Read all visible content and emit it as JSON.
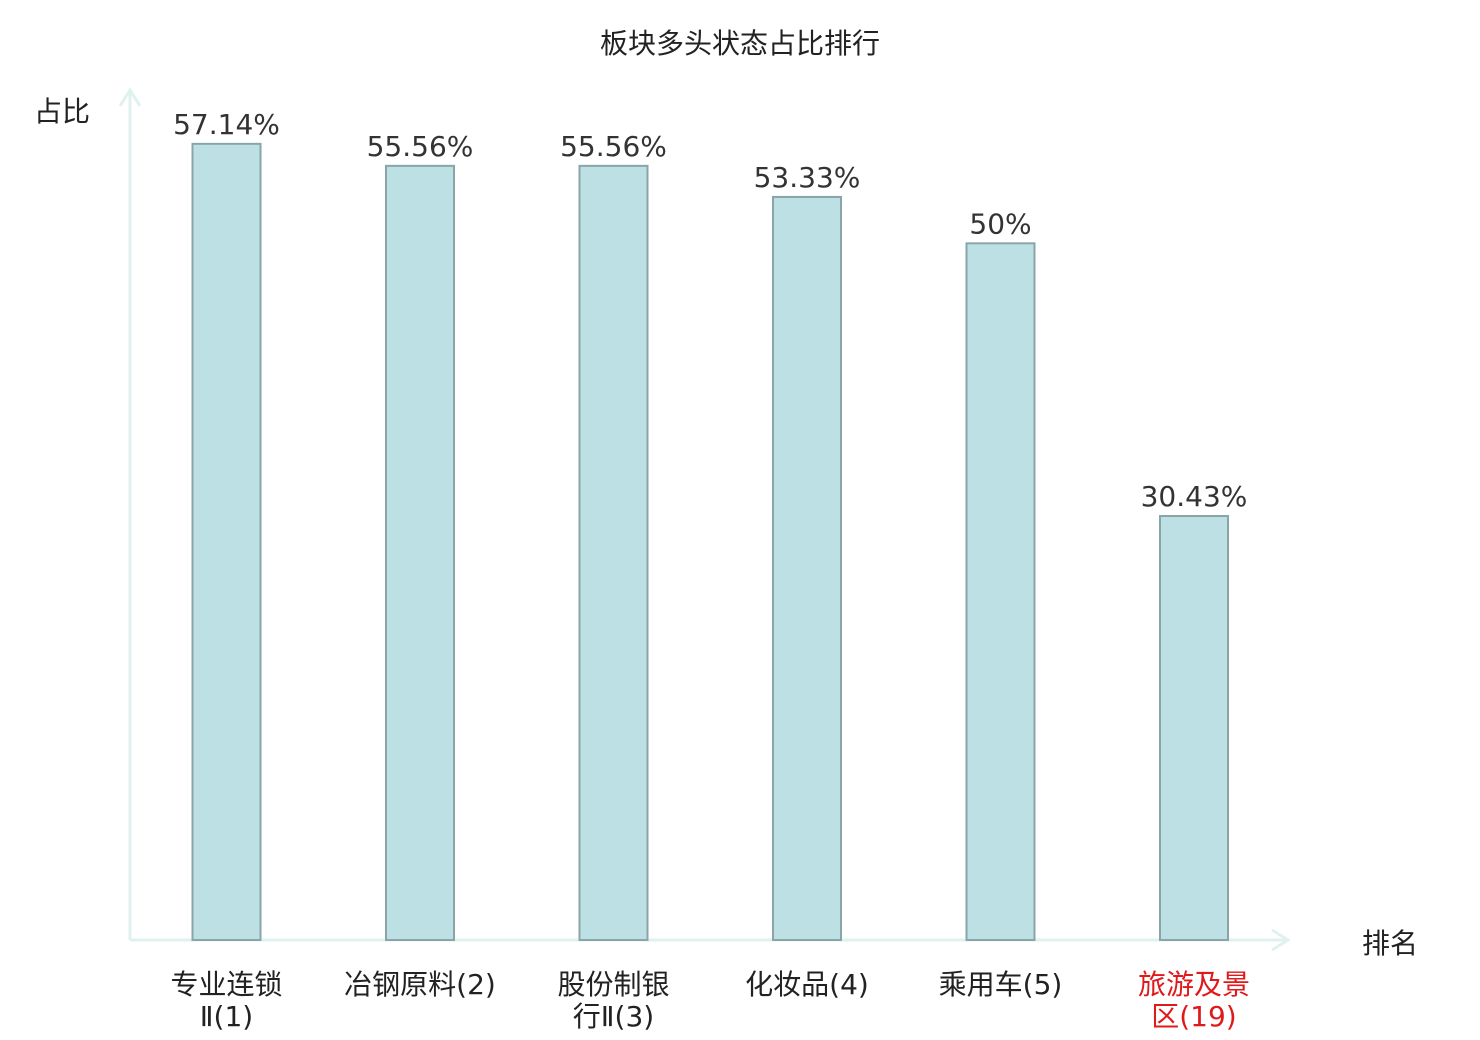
{
  "chart_data": {
    "type": "bar",
    "title": "板块多头状态占比排行",
    "ylabel": "占比",
    "xlabel": "排名",
    "categories": [
      [
        "专业连锁",
        "Ⅱ(1)"
      ],
      [
        "冶钢原料(2)"
      ],
      [
        "股份制银",
        "行Ⅱ(3)"
      ],
      [
        "化妆品(4)"
      ],
      [
        "乘用车(5)"
      ],
      [
        "旅游及景",
        "区(19)"
      ]
    ],
    "values": [
      57.14,
      55.56,
      55.56,
      53.33,
      50,
      30.43
    ],
    "value_labels": [
      "57.14%",
      "55.56%",
      "55.56%",
      "53.33%",
      "50%",
      "30.43%"
    ],
    "highlight_index": 5,
    "ylim": [
      0,
      60
    ],
    "grid": false,
    "colors": {
      "bar_fill": "#bce0e3",
      "bar_stroke": "#8aa5a8",
      "axis": "#e0f2ef",
      "label": "#222222",
      "highlight_label": "#e0191b"
    }
  }
}
